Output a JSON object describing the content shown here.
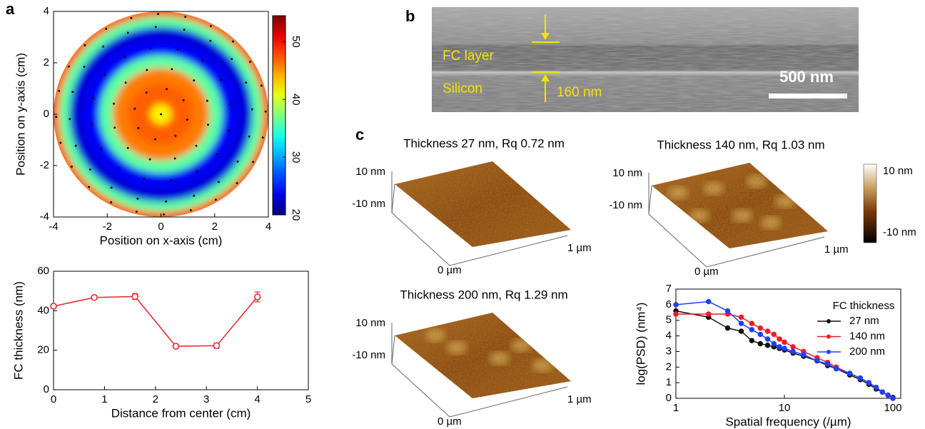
{
  "panels": {
    "a": "a",
    "b": "b",
    "c": "c"
  },
  "sem": {
    "layer_label": "FC layer",
    "substrate_label": "Silicon",
    "thickness_label": "160 nm",
    "scale_bar_label": "500 nm"
  },
  "afm": {
    "maps": [
      {
        "title": "Thickness 27 nm, Rq 0.72 nm",
        "z_top": "10 nm",
        "z_bottom": "-10 nm",
        "x_end": "1 µm",
        "origin": "0 µm"
      },
      {
        "title": "Thickness 140 nm, Rq 1.03 nm",
        "z_top": "10 nm",
        "z_bottom": "-10 nm",
        "x_end": "1 µm",
        "origin": "0 µm"
      },
      {
        "title": "Thickness 200 nm, Rq 1.29 nm",
        "z_top": "10 nm",
        "z_bottom": "-10 nm",
        "x_end": "1 µm",
        "origin": "0 µm"
      }
    ],
    "colorbar": {
      "top": "10 nm",
      "bottom": "-10 nm"
    }
  },
  "chart_data": [
    {
      "type": "contour",
      "xlabel": "Position on x-axis (cm)",
      "ylabel": "Position on y-axis (cm)",
      "xlim": [
        -4,
        4
      ],
      "ylim": [
        -4,
        4
      ],
      "xticks": [
        -4,
        -2,
        0,
        2,
        4
      ],
      "yticks": [
        -4,
        -2,
        0,
        2,
        4
      ],
      "r": [
        0,
        0.8,
        1.6,
        2.0,
        2.6,
        3.2,
        3.6,
        4
      ],
      "values": [
        42,
        47,
        46,
        36,
        24,
        23,
        36,
        47
      ],
      "colormap": "jet",
      "clim": [
        20,
        54.5
      ],
      "cticks": [
        20,
        30,
        40,
        50
      ]
    },
    {
      "type": "line",
      "xlabel": "Distance from center (cm)",
      "ylabel": "FC thickness (nm)",
      "x": [
        0,
        0.8,
        1.6,
        2.4,
        3.2,
        4
      ],
      "values": [
        42.3,
        46.7,
        47.2,
        22,
        22.3,
        47
      ],
      "errors": [
        1,
        1,
        1.5,
        0.8,
        1.3,
        2.5
      ],
      "color": "#e8232a",
      "marker": "open-circle",
      "xlim": [
        0,
        5
      ],
      "ylim": [
        0,
        60
      ],
      "xticks": [
        0,
        1,
        2,
        3,
        4,
        5
      ],
      "yticks": [
        0,
        20,
        40,
        60
      ]
    },
    {
      "type": "line",
      "xlabel": "Spatial frequency (/µm)",
      "ylabel": "log(PSD) (nm⁴)",
      "xscale": "log",
      "x": [
        1,
        2,
        3,
        4,
        5,
        6,
        7,
        8,
        9,
        10,
        12,
        15,
        20,
        25,
        30,
        40,
        50,
        60,
        70,
        80,
        90,
        100
      ],
      "series": [
        {
          "name": "27 nm",
          "color": "#111111",
          "values": [
            5.6,
            5.2,
            4.5,
            4.3,
            3.7,
            3.5,
            3.4,
            3.3,
            3.2,
            3.1,
            2.9,
            2.7,
            2.4,
            2.1,
            1.9,
            1.5,
            1.2,
            0.9,
            0.6,
            0.4,
            0.2,
            0.05
          ]
        },
        {
          "name": "140 nm",
          "color": "#ee1c25",
          "values": [
            5.4,
            5.4,
            5.4,
            5.2,
            4.8,
            4.5,
            4.3,
            4.1,
            3.8,
            3.6,
            3.3,
            3.0,
            2.6,
            2.3,
            2.0,
            1.6,
            1.3,
            1.0,
            0.7,
            0.4,
            0.2,
            0.0
          ]
        },
        {
          "name": "200 nm",
          "color": "#1f3fff",
          "values": [
            6.0,
            6.2,
            5.6,
            4.8,
            4.4,
            4.1,
            3.8,
            3.5,
            3.3,
            3.2,
            3.0,
            2.8,
            2.4,
            2.2,
            1.9,
            1.6,
            1.3,
            1.0,
            0.7,
            0.4,
            0.2,
            0.0
          ]
        }
      ],
      "legend_title": "FC thickness",
      "legend": "upper right",
      "marker": "filled-circle",
      "xlim": [
        1,
        118
      ],
      "ylim": [
        0,
        7
      ],
      "xticks": [
        1,
        10,
        100
      ],
      "yticks": [
        0,
        1,
        2,
        3,
        4,
        5,
        6,
        7
      ]
    }
  ]
}
